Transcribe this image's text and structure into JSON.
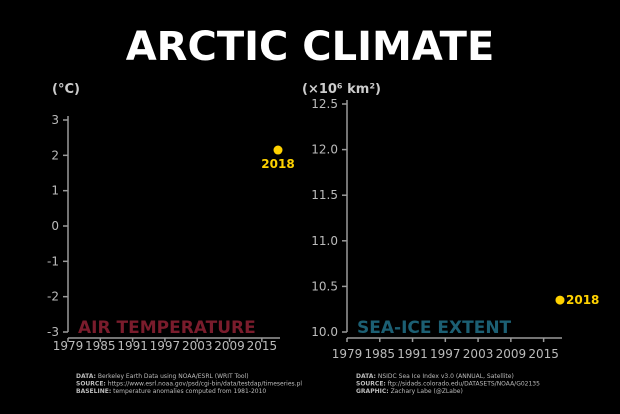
{
  "title": "ARCTIC CLIMATE",
  "colors": {
    "background": "#000000",
    "axis": "#9a9a9a",
    "point": "#ffd200",
    "air_label": "#7a1c2c",
    "ice_label": "#1c5f73"
  },
  "chart_data": [
    {
      "type": "scatter",
      "panel_label": "AIR TEMPERATURE",
      "unit": "(°C)",
      "ylim": [
        -3,
        3
      ],
      "yticks": [
        "3",
        "2",
        "1",
        "0",
        "-1",
        "-2",
        "-3"
      ],
      "xlim": [
        1979,
        2018
      ],
      "xticks": [
        "1979",
        "1985",
        "1991",
        "1997",
        "2003",
        "2009",
        "2015"
      ],
      "points": [
        {
          "x": 2018,
          "y": 2.15,
          "label": "2018"
        }
      ],
      "notes": [
        {
          "bold": "DATA:",
          "text": " Berkeley Earth Data using NOAA/ESRL (WRIT Tool)"
        },
        {
          "bold": "SOURCE:",
          "text": " https://www.esrl.noaa.gov/psd/cgi-bin/data/testdap/timeseries.pl"
        },
        {
          "bold": "BASELINE:",
          "text": " temperature anomalies computed from 1981-2010"
        }
      ]
    },
    {
      "type": "scatter",
      "panel_label": "SEA-ICE EXTENT",
      "unit": "(×10⁶ km²)",
      "ylim": [
        10.0,
        12.5
      ],
      "yticks": [
        "12.5",
        "12.0",
        "11.5",
        "11.0",
        "10.5",
        "10.0"
      ],
      "xlim": [
        1979,
        2018
      ],
      "xticks": [
        "1979",
        "1985",
        "1991",
        "1997",
        "2003",
        "2009",
        "2015"
      ],
      "points": [
        {
          "x": 2018,
          "y": 10.35,
          "label": "2018"
        }
      ],
      "notes": [
        {
          "bold": "DATA:",
          "text": " NSIDC Sea Ice Index v3.0 (ANNUAL, Satellite)"
        },
        {
          "bold": "SOURCE:",
          "text": " ftp://sidads.colorado.edu/DATASETS/NOAA/G02135"
        },
        {
          "bold": "GRAPHIC:",
          "text": " Zachary Labe (@ZLabe)"
        }
      ]
    }
  ]
}
